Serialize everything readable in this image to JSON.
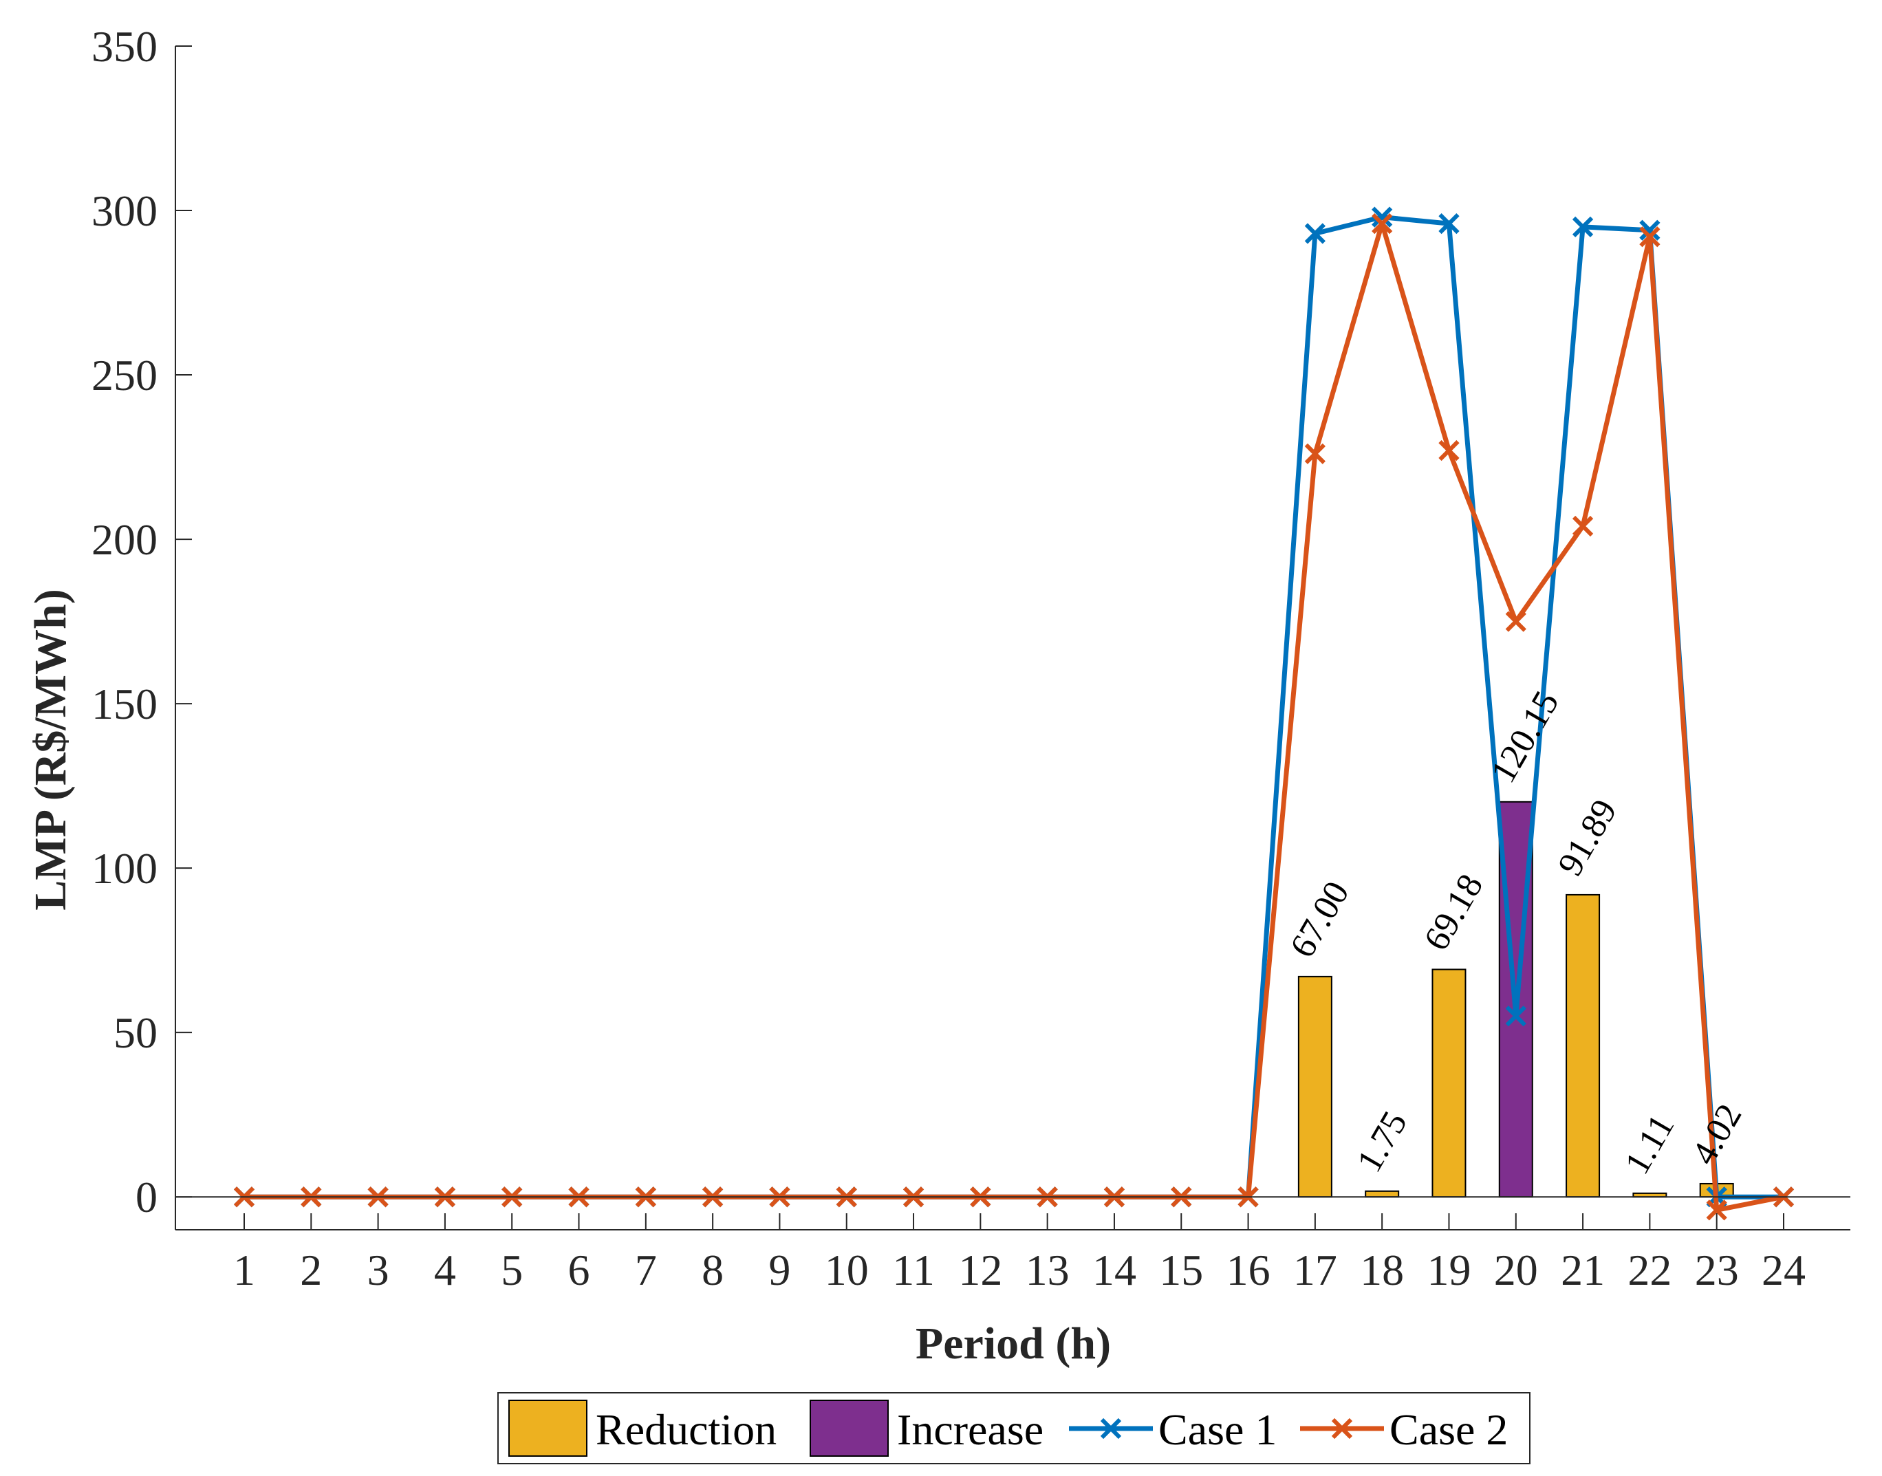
{
  "chart_data": {
    "type": "bar",
    "xlabel": "Period (h)",
    "ylabel": "LMP (R$/MWh)",
    "ylim": [
      -10,
      350
    ],
    "yticks": [
      0,
      50,
      100,
      150,
      200,
      250,
      300,
      350
    ],
    "categories": [
      "1",
      "2",
      "3",
      "4",
      "5",
      "6",
      "7",
      "8",
      "9",
      "10",
      "11",
      "12",
      "13",
      "14",
      "15",
      "16",
      "17",
      "18",
      "19",
      "20",
      "21",
      "22",
      "23",
      "24"
    ],
    "bars": [
      {
        "name": "Reduction",
        "color": "#EDB120",
        "values": [
          null,
          null,
          null,
          null,
          null,
          null,
          null,
          null,
          null,
          null,
          null,
          null,
          null,
          null,
          null,
          null,
          67.0,
          1.75,
          69.18,
          null,
          91.89,
          1.11,
          4.02,
          null
        ]
      },
      {
        "name": "Increase",
        "color": "#7E2F8E",
        "values": [
          null,
          null,
          null,
          null,
          null,
          null,
          null,
          null,
          null,
          null,
          null,
          null,
          null,
          null,
          null,
          null,
          null,
          null,
          null,
          120.15,
          null,
          null,
          null,
          null
        ]
      }
    ],
    "bar_labels": [
      "",
      "",
      "",
      "",
      "",
      "",
      "",
      "",
      "",
      "",
      "",
      "",
      "",
      "",
      "",
      "",
      "67.00",
      "1.75",
      "69.18",
      "120.15",
      "91.89",
      "1.11",
      "4.02",
      ""
    ],
    "series": [
      {
        "name": "Case 1",
        "color": "#0072BD",
        "type": "line",
        "marker": "x",
        "values": [
          0,
          0,
          0,
          0,
          0,
          0,
          0,
          0,
          0,
          0,
          0,
          0,
          0,
          0,
          0,
          0,
          293,
          298,
          296,
          55,
          295,
          294,
          0,
          0
        ]
      },
      {
        "name": "Case 2",
        "color": "#D95319",
        "type": "line",
        "marker": "x",
        "values": [
          0,
          0,
          0,
          0,
          0,
          0,
          0,
          0,
          0,
          0,
          0,
          0,
          0,
          0,
          0,
          0,
          226,
          296,
          227,
          175,
          204,
          292,
          -4,
          0
        ]
      }
    ],
    "legend": {
      "position": "bottom",
      "entries": [
        "Reduction",
        "Increase",
        "Case 1",
        "Case 2"
      ]
    },
    "grid": false
  }
}
